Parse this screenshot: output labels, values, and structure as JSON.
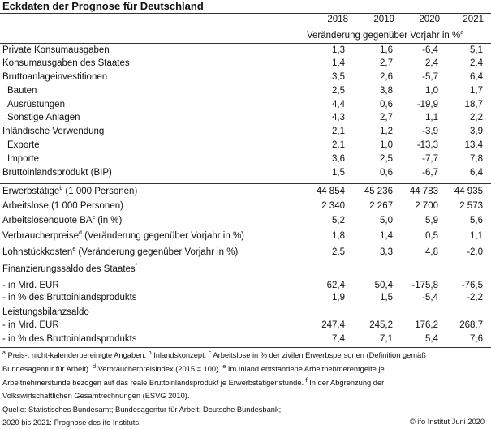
{
  "title": "Eckdaten der Prognose für Deutschland",
  "years": [
    "2018",
    "2019",
    "2020",
    "2021"
  ],
  "unit_label": "Veränderung gegenüber Vorjahr in %",
  "unit_sup": "a",
  "rows": [
    {
      "label": "Private Konsumausgaben",
      "values": [
        "1,3",
        "1,6",
        "-6,4",
        "5,1"
      ]
    },
    {
      "label": "Konsumausgaben des Staates",
      "values": [
        "1,4",
        "2,7",
        "2,4",
        "2,4"
      ]
    },
    {
      "label": "Bruttoanlageinvestitionen",
      "values": [
        "3,5",
        "2,6",
        "-5,7",
        "6,4"
      ]
    },
    {
      "label": "Bauten",
      "values": [
        "2,5",
        "3,8",
        "1,0",
        "1,7"
      ],
      "indent": true
    },
    {
      "label": "Ausrüstungen",
      "values": [
        "4,4",
        "0,6",
        "-19,9",
        "18,7"
      ],
      "indent": true
    },
    {
      "label": "Sonstige Anlagen",
      "values": [
        "4,3",
        "2,7",
        "1,1",
        "2,2"
      ],
      "indent": true
    },
    {
      "label": "Inländische Verwendung",
      "values": [
        "2,1",
        "1,2",
        "-3,9",
        "3,9"
      ]
    },
    {
      "label": "Exporte",
      "values": [
        "2,1",
        "1,0",
        "-13,3",
        "13,4"
      ],
      "indent": true
    },
    {
      "label": "Importe",
      "values": [
        "3,6",
        "2,5",
        "-7,7",
        "7,8"
      ],
      "indent": true
    },
    {
      "label": "Bruttoinlandsprodukt (BIP)",
      "values": [
        "1,5",
        "0,6",
        "-6,7",
        "6,4"
      ]
    },
    {
      "label": "Erwerbstätige",
      "sup": "b",
      "label_after": " (1 000 Personen)",
      "values": [
        "44 854",
        "45 236",
        "44 783",
        "44 935"
      ]
    },
    {
      "label": "Arbeitslose (1 000 Personen)",
      "values": [
        "2 340",
        "2 267",
        "2 700",
        "2 573"
      ]
    },
    {
      "label": "Arbeitslosenquote BA",
      "sup": "c",
      "label_after": " (in %)",
      "values": [
        "5,2",
        "5,0",
        "5,9",
        "5,6"
      ]
    },
    {
      "label": "Verbraucherpreise",
      "sup": "d",
      "label_after": " (Veränderung gegenüber Vorjahr in %)",
      "values": [
        "1,8",
        "1,4",
        "0,5",
        "1,1"
      ]
    },
    {
      "label": "Lohnstückkosten",
      "sup": "e",
      "label_after": " (Veränderung gegenüber Vorjahr in %)",
      "values": [
        "2,5",
        "3,3",
        "4,8",
        "-2,0"
      ]
    },
    {
      "label": "Finanzierungssaldo des Staates",
      "sup": "f",
      "values": [
        "",
        "",
        "",
        ""
      ]
    },
    {
      "label": " - in Mrd. EUR",
      "values": [
        "62,4",
        "50,4",
        "-175,8",
        "-76,5"
      ]
    },
    {
      "label": " - in % des Bruttoinlandsprodukts",
      "values": [
        "1,9",
        "1,5",
        "-5,4",
        "-2,2"
      ]
    },
    {
      "label": "Leistungsbilanzsaldo",
      "values": [
        "",
        "",
        "",
        ""
      ]
    },
    {
      "label": " - in Mrd. EUR",
      "values": [
        "247,4",
        "245,2",
        "176,2",
        "268,7"
      ]
    },
    {
      "label": " - in % des Bruttoinlandsprodukts",
      "values": [
        "7,4",
        "7,1",
        "5,4",
        "7,6"
      ]
    }
  ],
  "footnotes": {
    "line1": [
      {
        "sup": "a",
        "text": " Preis-, nicht-kalenderbereinigte Angaben. "
      },
      {
        "sup": "b",
        "text": " Inlandskonzept. "
      },
      {
        "sup": "c",
        "text": " Arbeitslose in % der zivilen Erwerbspersonen (Definition gemäß"
      }
    ],
    "line2": [
      {
        "sup": "",
        "text": "Bundesagentur für Arbeit). "
      },
      {
        "sup": "d",
        "text": " Verbraucherpreisindex (2015 = 100). "
      },
      {
        "sup": "e",
        "text": " Im Inland entstandene Arbeitnehmerentgelte je"
      }
    ],
    "line3": [
      {
        "sup": "",
        "text": "Arbeitnehmerstunde bezogen auf das reale Bruttoinlandsprodukt je Erwerbstätigenstunde. "
      },
      {
        "sup": "f",
        "text": " In der Abgrenzung der"
      }
    ],
    "line4": [
      {
        "sup": "",
        "text": "Volkswirtschaftlichen Gesamtrechnungen (ESVG 2010)."
      }
    ]
  },
  "source_line1": "Quelle: Statistisches Bundesamt; Bundesagentur für Arbeit; Deutsche Bundesbank;",
  "source_line2": "2020 bis 2021: Prognose des ifo Instituts.",
  "copyright": "© ifo Institut Juni 2020"
}
